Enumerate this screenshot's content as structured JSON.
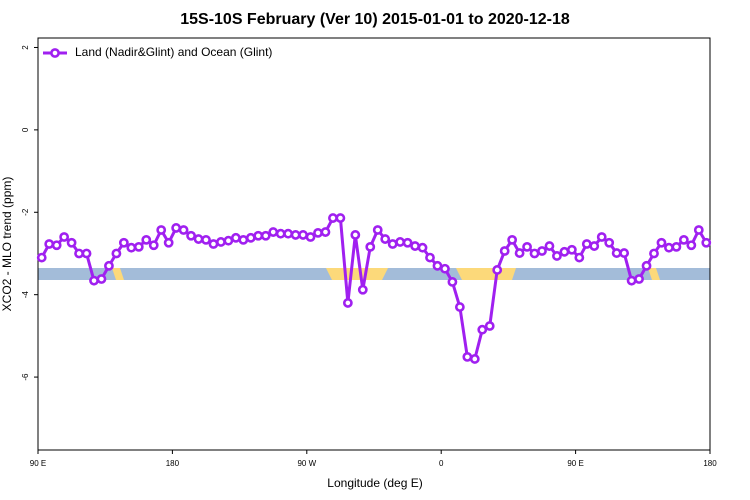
{
  "chart_data": {
    "type": "line",
    "title": "15S-10S February (Ver 10)   2015-01-01 to 2020-12-18",
    "xlabel": "Longitude (deg E)",
    "ylabel": "XCO2 - MLO trend (ppm)",
    "x": [
      92.5,
      97.5,
      102.5,
      107.5,
      112.5,
      117.5,
      122.5,
      127.5,
      132.5,
      137.5,
      142.5,
      147.5,
      152.5,
      157.5,
      162.5,
      167.5,
      172.5,
      177.5,
      182.5,
      187.5,
      192.5,
      197.5,
      202.5,
      207.5,
      212.5,
      217.5,
      222.5,
      227.5,
      232.5,
      237.5,
      242.5,
      247.5,
      252.5,
      257.5,
      262.5,
      267.5,
      272.5,
      277.5,
      282.5,
      287.5,
      292.5,
      297.5,
      302.5,
      307.5,
      312.5,
      317.5,
      322.5,
      327.5,
      332.5,
      337.5,
      342.5,
      347.5,
      352.5,
      357.5,
      362.5,
      367.5,
      372.5,
      377.5,
      382.5,
      387.5,
      392.5,
      397.5,
      402.5,
      407.5,
      412.5,
      417.5,
      422.5,
      427.5,
      432.5,
      437.5,
      442.5,
      447.5,
      452.5,
      457.5,
      462.5,
      467.5,
      472.5,
      477.5,
      482.5,
      487.5,
      492.5,
      497.5,
      502.5,
      507.5,
      512.5,
      517.5,
      522.5,
      527.5,
      532.5,
      537.5
    ],
    "series": [
      {
        "name": "Land (Nadir&Glint) and Ocean (Glint)",
        "color": "#a020f0",
        "values": [
          -3.1,
          -2.77,
          -2.8,
          -2.6,
          -2.74,
          -3.0,
          -3.0,
          -3.66,
          -3.62,
          -3.3,
          -3.0,
          -2.74,
          -2.86,
          -2.84,
          -2.67,
          -2.8,
          -2.43,
          -2.74,
          -2.38,
          -2.43,
          -2.57,
          -2.65,
          -2.67,
          -2.77,
          -2.72,
          -2.69,
          -2.62,
          -2.67,
          -2.62,
          -2.57,
          -2.57,
          -2.48,
          -2.52,
          -2.52,
          -2.55,
          -2.55,
          -2.6,
          -2.5,
          -2.48,
          -2.14,
          -2.14,
          -4.2,
          -2.55,
          -3.88,
          -2.84,
          -2.43,
          -2.65,
          -2.77,
          -2.72,
          -2.74,
          -2.82,
          -2.86,
          -3.1,
          -3.3,
          -3.37,
          -3.69,
          -4.3,
          -5.51,
          -5.56,
          -4.85,
          -4.76,
          -3.4,
          -2.94,
          -2.67,
          -2.99,
          -2.84,
          -3.0,
          -2.94,
          -2.82,
          -3.06,
          -2.96,
          -2.91,
          -3.1,
          -2.77,
          -2.82,
          -2.6,
          -2.74,
          -2.99,
          -2.99,
          -3.66,
          -3.62,
          -3.3,
          -3.0,
          -2.74,
          -2.86,
          -2.84,
          -2.67,
          -2.8,
          -2.43,
          -2.74
        ]
      }
    ],
    "xlim": [
      90,
      540
    ],
    "xticks": [
      {
        "value": 90,
        "label": "90 E"
      },
      180,
      {
        "value": 270,
        "label": "90 W"
      },
      {
        "value": 360,
        "label": "0"
      },
      {
        "value": 450,
        "label": "90 E"
      },
      {
        "value": 540,
        "label": "180"
      }
    ],
    "ylim": [
      -7.77,
      2.23
    ],
    "yticks": [
      2,
      0,
      -2,
      -4,
      -6
    ],
    "legend": "top-left"
  }
}
